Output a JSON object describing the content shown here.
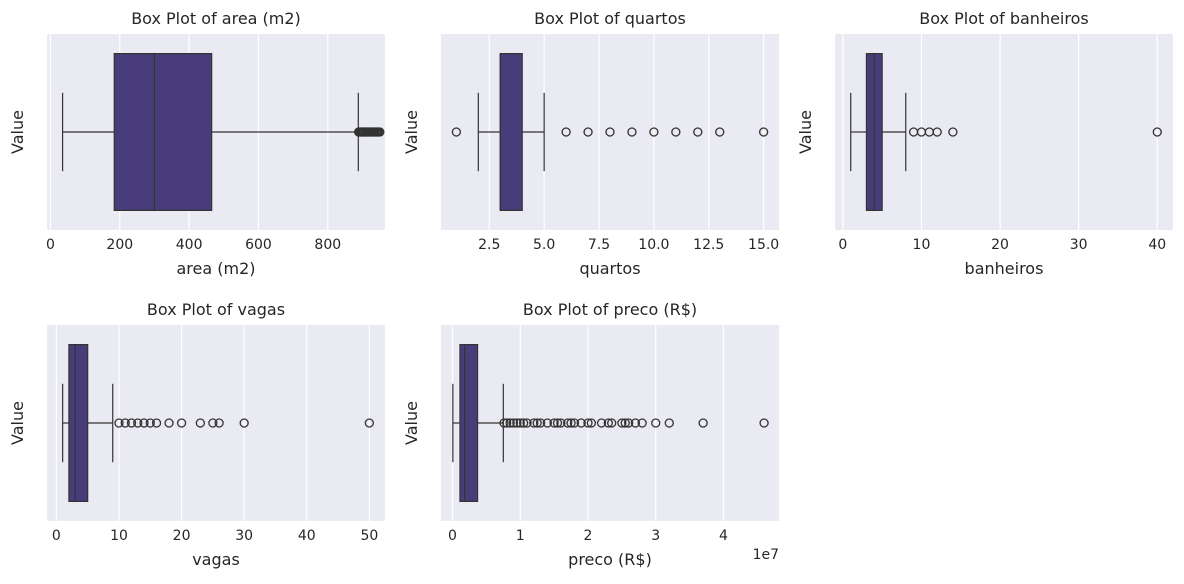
{
  "figure": {
    "background": "#ffffff",
    "axes_background": "#eaeaf2",
    "grid_color": "#ffffff",
    "box_color": "#483d7a",
    "line_color": "#333333"
  },
  "chart_data": [
    {
      "type": "box",
      "orientation": "horizontal",
      "title": "Box Plot of area (m2)",
      "xlabel": "area (m2)",
      "ylabel": "Value",
      "xlim": [
        -10,
        965
      ],
      "ticks": [
        0,
        200,
        400,
        600,
        800
      ],
      "tick_labels": [
        "0",
        "200",
        "400",
        "600",
        "800"
      ],
      "offset_label": "",
      "grid": true,
      "stats": {
        "whislo": 35,
        "q1": 184,
        "median": 300,
        "q3": 465,
        "whishi": 888
      },
      "fliers": [
        889,
        892,
        895,
        898,
        900,
        903,
        906,
        910,
        913,
        916,
        920,
        923,
        926,
        930,
        933,
        936,
        940,
        943,
        946,
        950
      ]
    },
    {
      "type": "box",
      "orientation": "horizontal",
      "title": "Box Plot of quartos",
      "xlabel": "quartos",
      "ylabel": "Value",
      "xlim": [
        0.3,
        15.7
      ],
      "ticks": [
        2.5,
        5.0,
        7.5,
        10.0,
        12.5,
        15.0
      ],
      "tick_labels": [
        "2.5",
        "5.0",
        "7.5",
        "10.0",
        "12.5",
        "15.0"
      ],
      "offset_label": "",
      "grid": true,
      "stats": {
        "whislo": 2,
        "q1": 3,
        "median": 3,
        "q3": 4,
        "whishi": 5
      },
      "fliers": [
        1,
        6,
        7,
        8,
        9,
        10,
        11,
        12,
        13,
        15
      ]
    },
    {
      "type": "box",
      "orientation": "horizontal",
      "title": "Box Plot of banheiros",
      "xlabel": "banheiros",
      "ylabel": "Value",
      "xlim": [
        -1,
        42
      ],
      "ticks": [
        0,
        10,
        20,
        30,
        40
      ],
      "tick_labels": [
        "0",
        "10",
        "20",
        "30",
        "40"
      ],
      "offset_label": "",
      "grid": true,
      "stats": {
        "whislo": 1,
        "q1": 3,
        "median": 4,
        "q3": 5,
        "whishi": 8
      },
      "fliers": [
        9,
        10,
        11,
        12,
        14,
        40
      ]
    },
    {
      "type": "box",
      "orientation": "horizontal",
      "title": "Box Plot of vagas",
      "xlabel": "vagas",
      "ylabel": "Value",
      "xlim": [
        -1.5,
        52.5
      ],
      "ticks": [
        0,
        10,
        20,
        30,
        40,
        50
      ],
      "tick_labels": [
        "0",
        "10",
        "20",
        "30",
        "40",
        "50"
      ],
      "offset_label": "",
      "grid": true,
      "stats": {
        "whislo": 1,
        "q1": 2,
        "median": 3,
        "q3": 5,
        "whishi": 9
      },
      "fliers": [
        10,
        11,
        12,
        13,
        14,
        15,
        16,
        18,
        20,
        23,
        25,
        26,
        30,
        50
      ]
    },
    {
      "type": "box",
      "orientation": "horizontal",
      "title": "Box Plot of preco (R$)",
      "xlabel": "preco (R$)",
      "ylabel": "Value",
      "xlim": [
        -1700000,
        48200000
      ],
      "ticks": [
        0,
        10000000,
        20000000,
        30000000,
        40000000
      ],
      "tick_labels": [
        "0",
        "1",
        "2",
        "3",
        "4"
      ],
      "offset_label": "1e7",
      "grid": true,
      "stats": {
        "whislo": 50000,
        "q1": 1100000,
        "median": 1800000,
        "q3": 3700000,
        "whishi": 7500000
      },
      "fliers": [
        7600000,
        8000000,
        8500000,
        9000000,
        9500000,
        10000000,
        10500000,
        11000000,
        12000000,
        12500000,
        13000000,
        14000000,
        15000000,
        15500000,
        16000000,
        17000000,
        17500000,
        18000000,
        19000000,
        20000000,
        20500000,
        22000000,
        23000000,
        23500000,
        25000000,
        25500000,
        26000000,
        27000000,
        28000000,
        30000000,
        32000000,
        37000000,
        46000000
      ]
    }
  ]
}
